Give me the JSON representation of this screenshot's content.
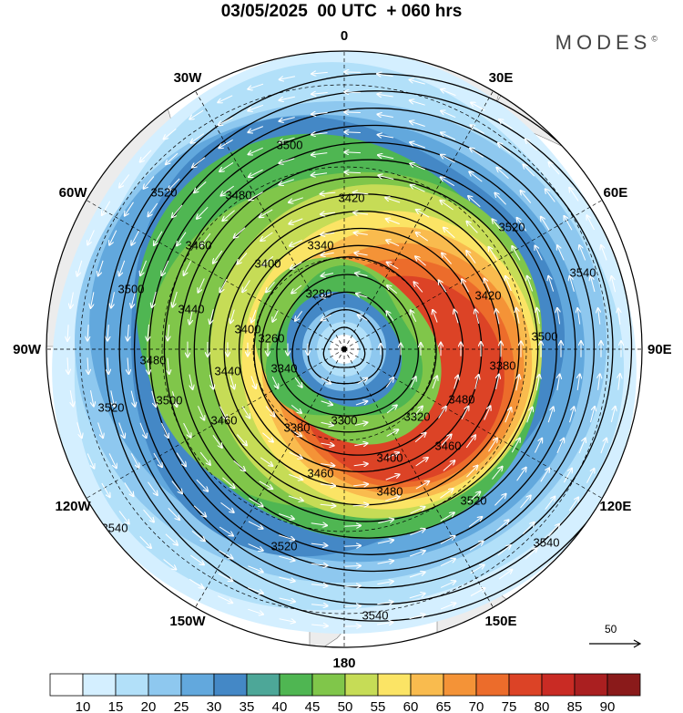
{
  "header": {
    "title": "03/05/2025  00 UTC  + 060 hrs",
    "brand": "MODES",
    "brand_mark": "©"
  },
  "map": {
    "projection": "polar-stereographic",
    "longitude_labels": [
      {
        "text": "0",
        "lon": 0
      },
      {
        "text": "30E",
        "lon": 30
      },
      {
        "text": "60E",
        "lon": 60
      },
      {
        "text": "90E",
        "lon": 90
      },
      {
        "text": "120E",
        "lon": 120
      },
      {
        "text": "150E",
        "lon": 150
      },
      {
        "text": "180",
        "lon": 180
      },
      {
        "text": "150W",
        "lon": -150
      },
      {
        "text": "120W",
        "lon": -120
      },
      {
        "text": "90W",
        "lon": -90
      },
      {
        "text": "60W",
        "lon": -60
      },
      {
        "text": "30W",
        "lon": -30
      }
    ],
    "contour_labels": [
      "3500",
      "3520",
      "3480",
      "3420",
      "3340",
      "3520",
      "3540",
      "3460",
      "3400",
      "3500",
      "3440",
      "3400",
      "3280",
      "3420",
      "3500",
      "3260",
      "3480",
      "3440",
      "3340",
      "3380",
      "3520",
      "3500",
      "3300",
      "3320",
      "3460",
      "3380",
      "3480",
      "3400",
      "3460",
      "3460",
      "3480",
      "3520",
      "3540",
      "3520",
      "3540",
      "3540"
    ],
    "colors": {
      "land": "#ececec",
      "coast": "#777777",
      "contour": "#000000",
      "wind_vectors": "#ffffff"
    }
  },
  "colorbar": {
    "ticks": [
      "10",
      "15",
      "20",
      "25",
      "30",
      "35",
      "40",
      "45",
      "50",
      "55",
      "60",
      "65",
      "70",
      "75",
      "80",
      "85",
      "90"
    ],
    "colors": [
      "#ffffff",
      "#d4efff",
      "#b2e0f9",
      "#8ec8ef",
      "#62a8dd",
      "#4488c6",
      "#4da798",
      "#4fb652",
      "#80c64a",
      "#c6dc56",
      "#fbe465",
      "#f9bb4e",
      "#f49337",
      "#ec6c2b",
      "#dc4326",
      "#c92b24",
      "#aa1f20",
      "#8a1a1a"
    ]
  },
  "reference_vector": {
    "label": "50"
  }
}
